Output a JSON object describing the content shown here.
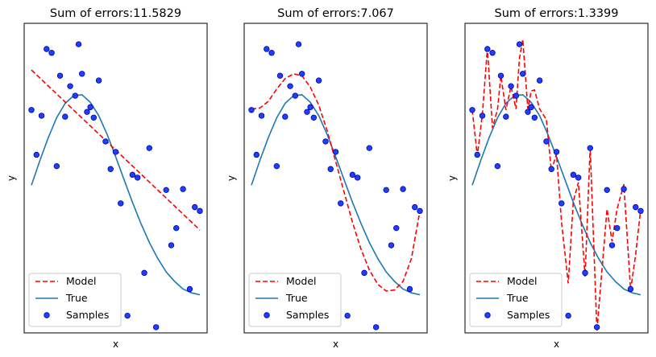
{
  "chart_data": [
    {
      "type": "line",
      "title": "Sum of errors:11.5829",
      "xlabel": "x",
      "ylabel": "y",
      "xlim": [
        0,
        1
      ],
      "ylim": [
        -1.5,
        1.75
      ],
      "legend_placement": "lower-left",
      "legend": [
        "Model",
        "True",
        "Samples"
      ],
      "series": [
        {
          "name": "Model",
          "style": "dashed",
          "color": "#ff0000",
          "x": [
            0.0,
            1.0
          ],
          "y": [
            1.26,
            -0.42
          ]
        },
        {
          "name": "True",
          "style": "solid",
          "color": "#1f77b4",
          "x": [
            0.0,
            0.05,
            0.1,
            0.15,
            0.2,
            0.25,
            0.3,
            0.35,
            0.4,
            0.45,
            0.5,
            0.55,
            0.6,
            0.65,
            0.7,
            0.75,
            0.8,
            0.85,
            0.9,
            0.95,
            1.0
          ],
          "y": [
            0.05,
            0.31,
            0.55,
            0.76,
            0.91,
            0.99,
            1.0,
            0.92,
            0.78,
            0.58,
            0.35,
            0.11,
            -0.13,
            -0.35,
            -0.55,
            -0.72,
            -0.86,
            -0.96,
            -1.04,
            -1.08,
            -1.1
          ]
        }
      ],
      "samples": {
        "name": "Samples",
        "color": "#1f3fff",
        "edge": "#0000aa",
        "x": [
          0.0,
          0.03,
          0.06,
          0.09,
          0.12,
          0.15,
          0.17,
          0.2,
          0.23,
          0.26,
          0.28,
          0.3,
          0.33,
          0.35,
          0.37,
          0.4,
          0.44,
          0.47,
          0.5,
          0.53,
          0.57,
          0.6,
          0.63,
          0.67,
          0.7,
          0.74,
          0.8,
          0.83,
          0.86,
          0.9,
          0.94,
          0.97,
          1.0
        ],
        "y": [
          0.84,
          0.37,
          0.78,
          1.48,
          1.44,
          0.25,
          1.2,
          0.77,
          1.09,
          0.99,
          1.53,
          1.22,
          0.82,
          0.87,
          0.76,
          1.15,
          0.51,
          0.22,
          0.4,
          -0.14,
          -1.32,
          0.16,
          0.13,
          -0.87,
          0.44,
          -1.44,
          0.0,
          -0.58,
          -0.4,
          0.01,
          -1.04,
          -0.18,
          -0.22
        ]
      }
    },
    {
      "type": "line",
      "title": "Sum of errors:7.067",
      "xlabel": "x",
      "ylabel": "y",
      "xlim": [
        0,
        1
      ],
      "ylim": [
        -1.5,
        1.75
      ],
      "legend_placement": "lower-left",
      "legend": [
        "Model",
        "True",
        "Samples"
      ],
      "series": [
        {
          "name": "Model",
          "style": "dashed",
          "color": "#ff0000",
          "x": [
            0.0,
            0.05,
            0.1,
            0.15,
            0.2,
            0.25,
            0.3,
            0.35,
            0.4,
            0.45,
            0.5,
            0.55,
            0.6,
            0.65,
            0.7,
            0.75,
            0.8,
            0.85,
            0.9,
            0.95,
            1.0
          ],
          "y": [
            0.85,
            0.86,
            0.93,
            1.06,
            1.17,
            1.22,
            1.2,
            1.08,
            0.89,
            0.62,
            0.3,
            -0.02,
            -0.34,
            -0.62,
            -0.84,
            -0.99,
            -1.06,
            -1.05,
            -0.96,
            -0.72,
            -0.22
          ]
        },
        {
          "name": "True",
          "style": "solid",
          "color": "#1f77b4",
          "x": [
            0.0,
            0.05,
            0.1,
            0.15,
            0.2,
            0.25,
            0.3,
            0.35,
            0.4,
            0.45,
            0.5,
            0.55,
            0.6,
            0.65,
            0.7,
            0.75,
            0.8,
            0.85,
            0.9,
            0.95,
            1.0
          ],
          "y": [
            0.05,
            0.31,
            0.55,
            0.76,
            0.91,
            0.99,
            1.0,
            0.92,
            0.78,
            0.58,
            0.35,
            0.11,
            -0.13,
            -0.35,
            -0.55,
            -0.72,
            -0.86,
            -0.96,
            -1.04,
            -1.08,
            -1.1
          ]
        }
      ],
      "samples": {
        "name": "Samples",
        "color": "#1f3fff",
        "edge": "#0000aa",
        "x": [
          0.0,
          0.03,
          0.06,
          0.09,
          0.12,
          0.15,
          0.17,
          0.2,
          0.23,
          0.26,
          0.28,
          0.3,
          0.33,
          0.35,
          0.37,
          0.4,
          0.44,
          0.47,
          0.5,
          0.53,
          0.57,
          0.6,
          0.63,
          0.67,
          0.7,
          0.74,
          0.8,
          0.83,
          0.86,
          0.9,
          0.94,
          0.97,
          1.0
        ],
        "y": [
          0.84,
          0.37,
          0.78,
          1.48,
          1.44,
          0.25,
          1.2,
          0.77,
          1.09,
          0.99,
          1.53,
          1.22,
          0.82,
          0.87,
          0.76,
          1.15,
          0.51,
          0.22,
          0.4,
          -0.14,
          -1.32,
          0.16,
          0.13,
          -0.87,
          0.44,
          -1.44,
          0.0,
          -0.58,
          -0.4,
          0.01,
          -1.04,
          -0.18,
          -0.22
        ]
      }
    },
    {
      "type": "line",
      "title": "Sum of errors:1.3399",
      "xlabel": "x",
      "ylabel": "y",
      "xlim": [
        0,
        1
      ],
      "ylim": [
        -1.5,
        1.75
      ],
      "legend_placement": "lower-left",
      "legend": [
        "Model",
        "True",
        "Samples"
      ],
      "series": [
        {
          "name": "Model",
          "style": "dashed",
          "color": "#ff0000",
          "x": [
            0.0,
            0.03,
            0.06,
            0.09,
            0.12,
            0.15,
            0.17,
            0.2,
            0.23,
            0.26,
            0.28,
            0.3,
            0.33,
            0.35,
            0.37,
            0.4,
            0.44,
            0.47,
            0.5,
            0.53,
            0.57,
            0.6,
            0.63,
            0.67,
            0.7,
            0.74,
            0.8,
            0.83,
            0.86,
            0.9,
            0.94,
            0.97,
            1.0
          ],
          "y": [
            0.84,
            0.36,
            0.79,
            1.49,
            0.65,
            0.85,
            1.2,
            0.84,
            1.09,
            0.85,
            1.38,
            1.58,
            0.85,
            1.04,
            1.05,
            0.85,
            0.74,
            0.2,
            0.38,
            -0.34,
            -0.98,
            -0.12,
            0.08,
            -0.91,
            0.45,
            -1.48,
            -0.2,
            -0.54,
            -0.2,
            0.06,
            -1.05,
            -0.68,
            -0.2
          ]
        },
        {
          "name": "True",
          "style": "solid",
          "color": "#1f77b4",
          "x": [
            0.0,
            0.05,
            0.1,
            0.15,
            0.2,
            0.25,
            0.3,
            0.35,
            0.4,
            0.45,
            0.5,
            0.55,
            0.6,
            0.65,
            0.7,
            0.75,
            0.8,
            0.85,
            0.9,
            0.95,
            1.0
          ],
          "y": [
            0.05,
            0.31,
            0.55,
            0.76,
            0.91,
            0.99,
            1.0,
            0.92,
            0.78,
            0.58,
            0.35,
            0.11,
            -0.13,
            -0.35,
            -0.55,
            -0.72,
            -0.86,
            -0.96,
            -1.04,
            -1.08,
            -1.1
          ]
        }
      ],
      "samples": {
        "name": "Samples",
        "color": "#1f3fff",
        "edge": "#0000aa",
        "x": [
          0.0,
          0.03,
          0.06,
          0.09,
          0.12,
          0.15,
          0.17,
          0.2,
          0.23,
          0.26,
          0.28,
          0.3,
          0.33,
          0.35,
          0.37,
          0.4,
          0.44,
          0.47,
          0.5,
          0.53,
          0.57,
          0.6,
          0.63,
          0.67,
          0.7,
          0.74,
          0.8,
          0.83,
          0.86,
          0.9,
          0.94,
          0.97,
          1.0
        ],
        "y": [
          0.84,
          0.37,
          0.78,
          1.48,
          1.44,
          0.25,
          1.2,
          0.77,
          1.09,
          0.99,
          1.53,
          1.22,
          0.82,
          0.87,
          0.76,
          1.15,
          0.51,
          0.22,
          0.4,
          -0.14,
          -1.32,
          0.16,
          0.13,
          -0.87,
          0.44,
          -1.44,
          0.0,
          -0.58,
          -0.4,
          0.01,
          -1.04,
          -0.18,
          -0.22
        ]
      }
    }
  ]
}
